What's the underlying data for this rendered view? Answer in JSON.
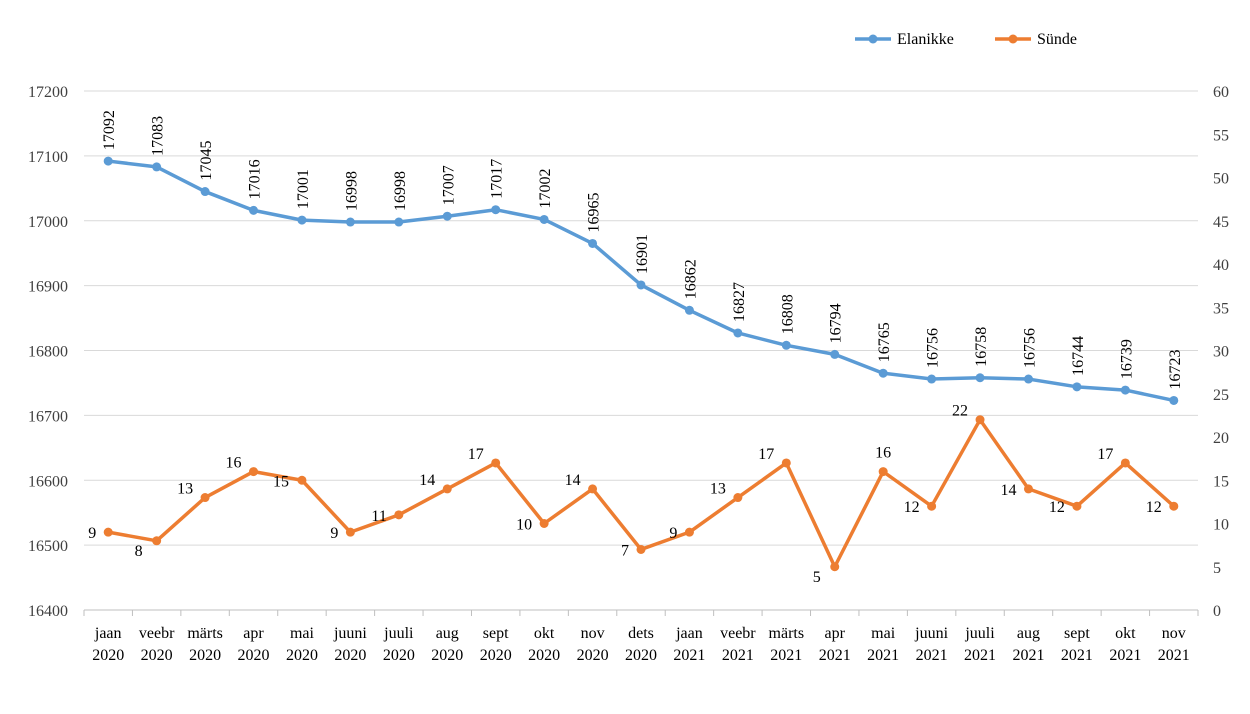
{
  "chart_data": {
    "type": "line",
    "categories": [
      [
        "jaan",
        "2020"
      ],
      [
        "veebr",
        "2020"
      ],
      [
        "märts",
        "2020"
      ],
      [
        "apr",
        "2020"
      ],
      [
        "mai",
        "2020"
      ],
      [
        "juuni",
        "2020"
      ],
      [
        "juuli",
        "2020"
      ],
      [
        "aug",
        "2020"
      ],
      [
        "sept",
        "2020"
      ],
      [
        "okt",
        "2020"
      ],
      [
        "nov",
        "2020"
      ],
      [
        "dets",
        "2020"
      ],
      [
        "jaan",
        "2021"
      ],
      [
        "veebr",
        "2021"
      ],
      [
        "märts",
        "2021"
      ],
      [
        "apr",
        "2021"
      ],
      [
        "mai",
        "2021"
      ],
      [
        "juuni",
        "2021"
      ],
      [
        "juuli",
        "2021"
      ],
      [
        "aug",
        "2021"
      ],
      [
        "sept",
        "2021"
      ],
      [
        "okt",
        "2021"
      ],
      [
        "nov",
        "2021"
      ]
    ],
    "series": [
      {
        "name": "Elanikke",
        "axis": "left",
        "color": "#5b9bd5",
        "values": [
          17092,
          17083,
          17045,
          17016,
          17001,
          16998,
          16998,
          17007,
          17017,
          17002,
          16965,
          16901,
          16862,
          16827,
          16808,
          16794,
          16765,
          16756,
          16758,
          16756,
          16744,
          16739,
          16723
        ]
      },
      {
        "name": "Sünde",
        "axis": "right",
        "color": "#ed7d31",
        "values": [
          9,
          8,
          13,
          16,
          15,
          9,
          11,
          14,
          17,
          10,
          14,
          7,
          9,
          13,
          17,
          5,
          16,
          12,
          22,
          14,
          12,
          17,
          12
        ]
      }
    ],
    "y_left": {
      "min": 16400,
      "max": 17200,
      "step": 100
    },
    "y_right": {
      "min": 0,
      "max": 60,
      "step": 5
    },
    "grid": true,
    "legend_position": "top-right"
  }
}
